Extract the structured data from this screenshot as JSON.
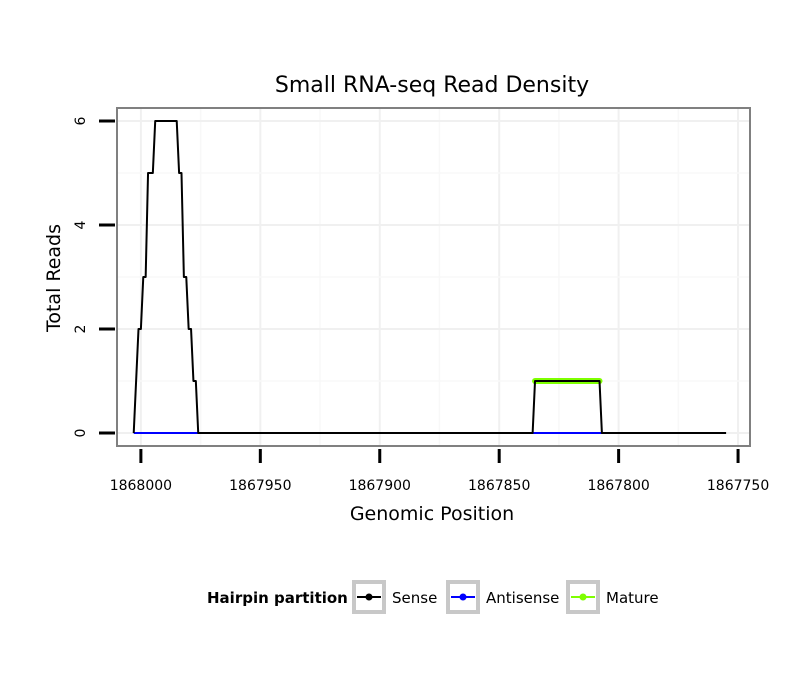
{
  "chart_data": {
    "type": "line",
    "title": "Small RNA-seq Read Density",
    "xlabel": "Genomic Position",
    "ylabel": "Total Reads",
    "x_reversed": true,
    "xlim": [
      1868010,
      1867745
    ],
    "ylim": [
      -0.25,
      6.25
    ],
    "x_ticks": [
      1868000,
      1867950,
      1867900,
      1867850,
      1867800,
      1867750
    ],
    "x_tick_labels": [
      "1868000",
      "1867950",
      "1867900",
      "1867850",
      "1867800",
      "1867750"
    ],
    "y_ticks": [
      0,
      2,
      4,
      6
    ],
    "y_tick_labels": [
      "0",
      "2",
      "4",
      "6"
    ],
    "grid": true,
    "legend_title": "Hairpin partition",
    "legend_position": "bottom",
    "series": [
      {
        "name": "Sense",
        "color": "#000000",
        "x": [
          1868003,
          1868002,
          1868001,
          1868000,
          1867999,
          1867998,
          1867997,
          1867996,
          1867995,
          1867994,
          1867993,
          1867992,
          1867991,
          1867990,
          1867989,
          1867988,
          1867987,
          1867986,
          1867985,
          1867984,
          1867983,
          1867982,
          1867981,
          1867980,
          1867979,
          1867978,
          1867977,
          1867976,
          1867975,
          1867974,
          1867973,
          1867972,
          1867971,
          1867970,
          1867969,
          1867968,
          1867836,
          1867835,
          1867808,
          1867807,
          1867755
        ],
        "values": [
          0,
          1,
          2,
          2,
          3,
          3,
          5,
          5,
          5,
          6,
          6,
          6,
          6,
          6,
          6,
          6,
          6,
          6,
          6,
          5,
          5,
          3,
          3,
          2,
          2,
          1,
          1,
          0,
          0,
          0,
          0,
          0,
          0,
          0,
          0,
          0,
          0,
          1,
          1,
          0,
          0
        ]
      },
      {
        "name": "Antisense",
        "color": "#0000ff",
        "x": [
          1868003,
          1867968,
          1867836,
          1867807
        ],
        "values": [
          0,
          0,
          0,
          0
        ]
      },
      {
        "name": "Mature",
        "color": "#7fff00",
        "x": [
          1867835,
          1867808
        ],
        "values": [
          1,
          1
        ]
      }
    ]
  }
}
